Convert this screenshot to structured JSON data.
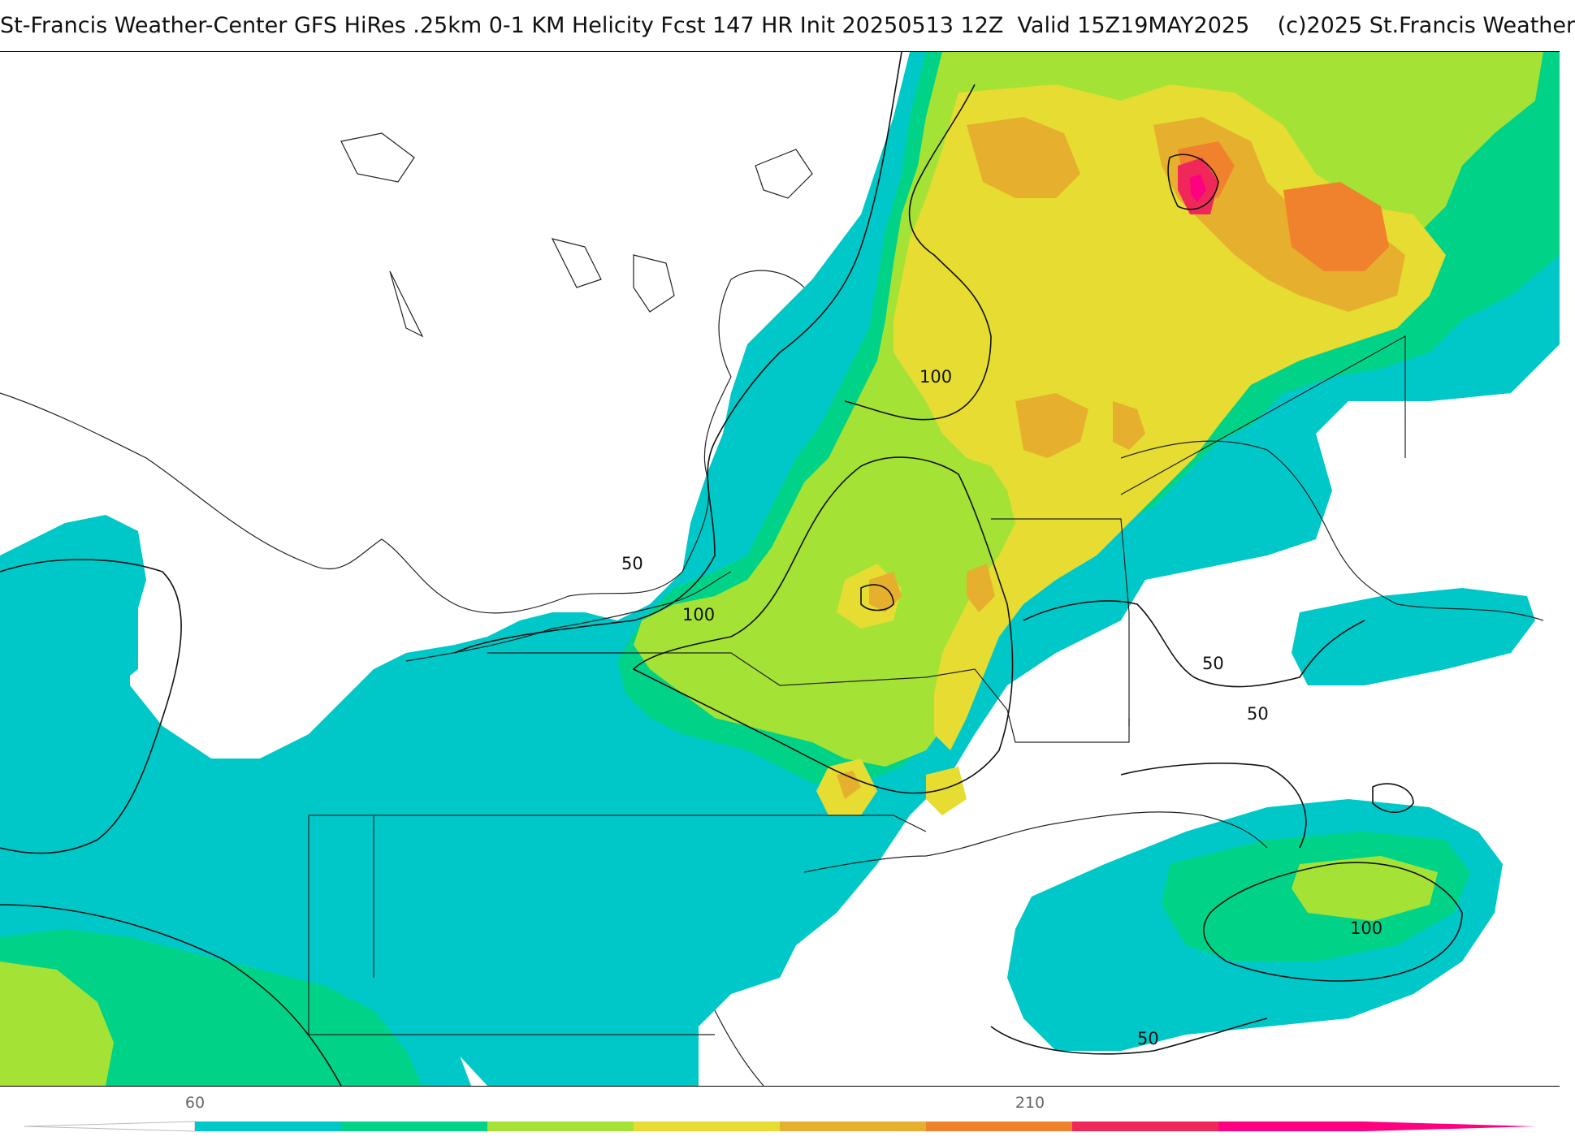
{
  "header": {
    "title": "St-Francis Weather-Center GFS HiRes .25km 0-1 KM Helicity Fcst 147 HR Init 20250513 12Z  Valid 15Z19MAY2025    (c)2025 St.Francis Weather"
  },
  "map": {
    "contour_labels": [
      {
        "id": "lbl-100-north",
        "text": "100"
      },
      {
        "id": "lbl-50-west",
        "text": "50"
      },
      {
        "id": "lbl-100-central",
        "text": "100"
      },
      {
        "id": "lbl-50-east",
        "text": "50"
      },
      {
        "id": "lbl-50-sea",
        "text": "50"
      },
      {
        "id": "lbl-100-ocean",
        "text": "100"
      },
      {
        "id": "lbl-50-south",
        "text": "50"
      }
    ]
  },
  "colorbar": {
    "tick_labels": [
      "60",
      "210"
    ],
    "colors": [
      "#00c8c8",
      "#00d387",
      "#a5e236",
      "#e6dc32",
      "#e6af2d",
      "#f0822d",
      "#f0285a",
      "#ff0080"
    ]
  }
}
